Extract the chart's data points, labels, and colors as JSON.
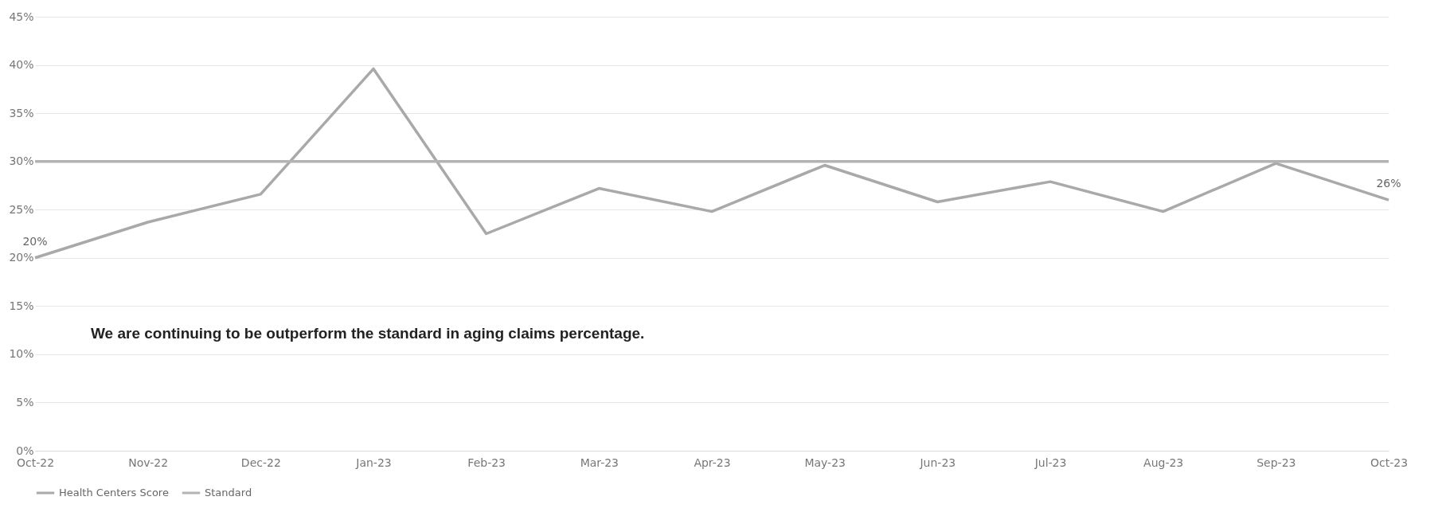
{
  "chart_data": {
    "type": "line",
    "categories": [
      "Oct-22",
      "Nov-22",
      "Dec-22",
      "Jan-23",
      "Feb-23",
      "Mar-23",
      "Apr-23",
      "May-23",
      "Jun-23",
      "Jul-23",
      "Aug-23",
      "Sep-23",
      "Oct-23"
    ],
    "series": [
      {
        "name": "Health Centers Score",
        "color": "#a9a9a9",
        "values": [
          20,
          23.7,
          26.6,
          39.6,
          22.5,
          27.2,
          24.8,
          29.6,
          25.8,
          27.9,
          24.8,
          29.8,
          26
        ],
        "value_labels": [
          "20%",
          null,
          null,
          null,
          null,
          null,
          null,
          null,
          null,
          null,
          null,
          null,
          "26%"
        ]
      },
      {
        "name": "Standard",
        "color": "#b3b3b3",
        "values": [
          30,
          30,
          30,
          30,
          30,
          30,
          30,
          30,
          30,
          30,
          30,
          30,
          30
        ]
      }
    ],
    "ylim": [
      0,
      45
    ],
    "yticks": [
      {
        "value": 0,
        "label": "0%"
      },
      {
        "value": 5,
        "label": "5%"
      },
      {
        "value": 10,
        "label": "10%"
      },
      {
        "value": 15,
        "label": "15%"
      },
      {
        "value": 20,
        "label": "20%"
      },
      {
        "value": 25,
        "label": "25%"
      },
      {
        "value": 30,
        "label": "30%"
      },
      {
        "value": 35,
        "label": "35%"
      },
      {
        "value": 40,
        "label": "40%"
      },
      {
        "value": 45,
        "label": "45%"
      }
    ],
    "grid": "y",
    "legend": "bottom",
    "marker": "none",
    "line_style": "solid",
    "annotations": [
      "We are continuing to be outperform the standard in aging claims percentage."
    ]
  }
}
